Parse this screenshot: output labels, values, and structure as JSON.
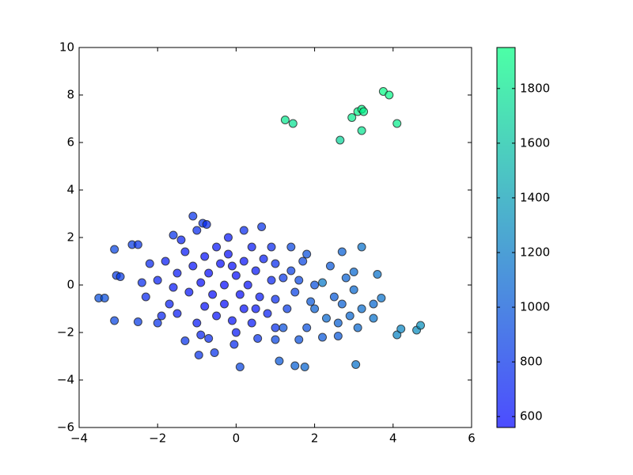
{
  "chart_data": {
    "type": "scatter",
    "xlim": [
      -4,
      6
    ],
    "xticks": [
      {
        "value": -4,
        "label": "−4"
      },
      {
        "value": -2,
        "label": "−2"
      },
      0,
      2,
      4,
      6
    ],
    "ylim": [
      -6,
      10
    ],
    "yticks": [
      {
        "value": -6,
        "label": "−6"
      },
      {
        "value": -4,
        "label": "−4"
      },
      {
        "value": -2,
        "label": "−2"
      },
      0,
      2,
      4,
      6,
      8,
      10
    ],
    "colormap": "winter",
    "colorbar": {
      "lim": [
        560,
        1950
      ],
      "ticks": [
        600,
        800,
        1000,
        1200,
        1400,
        1600,
        1800
      ]
    },
    "series": [
      {
        "x": [
          1.25,
          1.45,
          2.65,
          2.95,
          3.1,
          3.2,
          3.25,
          3.2,
          3.75,
          3.9,
          4.1,
          4.6,
          4.7,
          4.1,
          4.2,
          3.05,
          1.5,
          1.75,
          1.1,
          0.1,
          3.6,
          3.2,
          3.0,
          3.7,
          3.5,
          3.5,
          3.1,
          2.6,
          2.7,
          2.7,
          2.3,
          2.2,
          2.6,
          2.0,
          2.2,
          1.8,
          1.9,
          1.7,
          1.4,
          1.8,
          1.2,
          1.0,
          1.6,
          -3.5,
          -3.35,
          -3.1,
          -3.1,
          -3.05,
          -2.95,
          -2.5,
          -2.65,
          -2.5,
          -2.0,
          -1.1,
          -0.85,
          -0.75,
          -1.0,
          -1.6,
          0.2,
          0.65,
          -0.55,
          -0.95,
          -1.3,
          -0.7,
          -0.05,
          0.55,
          -2,
          -1.8,
          -1.7,
          -1.5,
          -1.5,
          -1.3,
          -1.2,
          -1.1,
          -1.0,
          -0.9,
          -0.8,
          -0.8,
          -0.7,
          -0.6,
          -0.5,
          -0.5,
          -0.4,
          -0.3,
          -0.3,
          -0.2,
          -0.1,
          0.0,
          0.1,
          0.2,
          0.2,
          0.3,
          0.4,
          0.4,
          0.5,
          0.6,
          0.7,
          0.8,
          0.9,
          1.0,
          1.0,
          1.2,
          1.3,
          1.4,
          1.5,
          -2.3,
          -2.2,
          -2.4,
          -1.9,
          -1.4,
          -0.2,
          0.0,
          -0.9,
          0.9,
          1.0,
          -1.6,
          -0.1,
          0.5,
          1.6,
          2.0,
          2.4,
          2.5,
          2.8,
          3.0,
          3.2,
          2.9
        ],
        "values": [
          6.95,
          6.8,
          6.1,
          7.05,
          7.3,
          7.4,
          7.3,
          6.5,
          8.15,
          8.0,
          6.8,
          -1.9,
          -1.7,
          -2.1,
          -1.85,
          -3.35,
          -3.4,
          -3.45,
          -3.2,
          -3.45,
          0.45,
          1.6,
          0.55,
          -0.55,
          -0.8,
          -1.4,
          -1.8,
          -1.6,
          -0.8,
          1.4,
          -1.4,
          -2.2,
          -2.15,
          -1.0,
          0.1,
          -1.8,
          -0.7,
          1.0,
          1.6,
          1.3,
          -1.8,
          -2.3,
          -2.3,
          -0.55,
          -0.55,
          -1.5,
          1.5,
          0.4,
          0.35,
          -1.55,
          1.7,
          1.7,
          -1.6,
          2.9,
          2.6,
          2.55,
          2.3,
          2.1,
          2.3,
          2.45,
          -2.85,
          -2.95,
          -2.35,
          -2.25,
          -2.5,
          -2.25,
          0.2,
          1.0,
          -0.8,
          0.5,
          -1.2,
          1.4,
          -0.3,
          0.8,
          -1.6,
          0.1,
          1.2,
          -0.9,
          0.5,
          -0.4,
          1.6,
          -1.3,
          0.9,
          0.0,
          -0.8,
          1.3,
          -1.5,
          0.4,
          -0.4,
          1.0,
          -1.0,
          0.0,
          1.6,
          -1.6,
          0.6,
          -0.5,
          1.1,
          -1.2,
          0.2,
          -0.6,
          0.9,
          0.3,
          -1.0,
          0.6,
          -0.3,
          -0.5,
          0.9,
          0.1,
          -1.3,
          1.9,
          2.0,
          -2.0,
          -2.1,
          1.6,
          -1.8,
          -0.1,
          0.8,
          -1.0,
          0.2,
          0.0,
          0.8,
          -0.5,
          0.3,
          -0.2,
          -1.0,
          -1.3
        ],
        "color_values": [
          1820,
          1780,
          1700,
          1840,
          1880,
          1900,
          1870,
          1800,
          1920,
          1900,
          1850,
          1300,
          1320,
          1250,
          1260,
          1150,
          1050,
          1080,
          1000,
          900,
          1150,
          1150,
          1100,
          1150,
          1100,
          1150,
          1100,
          1050,
          1050,
          1050,
          1100,
          1000,
          1000,
          1050,
          1200,
          950,
          1000,
          900,
          900,
          950,
          950,
          900,
          950,
          950,
          950,
          900,
          900,
          850,
          850,
          850,
          850,
          800,
          800,
          800,
          800,
          750,
          750,
          800,
          750,
          800,
          800,
          800,
          800,
          750,
          750,
          800,
          700,
          680,
          690,
          660,
          680,
          660,
          640,
          630,
          660,
          610,
          630,
          620,
          600,
          600,
          640,
          620,
          600,
          590,
          600,
          610,
          630,
          600,
          600,
          620,
          620,
          620,
          660,
          660,
          650,
          660,
          690,
          700,
          720,
          760,
          760,
          820,
          850,
          860,
          880,
          740,
          740,
          760,
          720,
          700,
          650,
          660,
          720,
          740,
          780,
          660,
          600,
          640,
          900,
          960,
          1000,
          1020,
          1060,
          1100,
          1120,
          1090
        ]
      }
    ]
  }
}
